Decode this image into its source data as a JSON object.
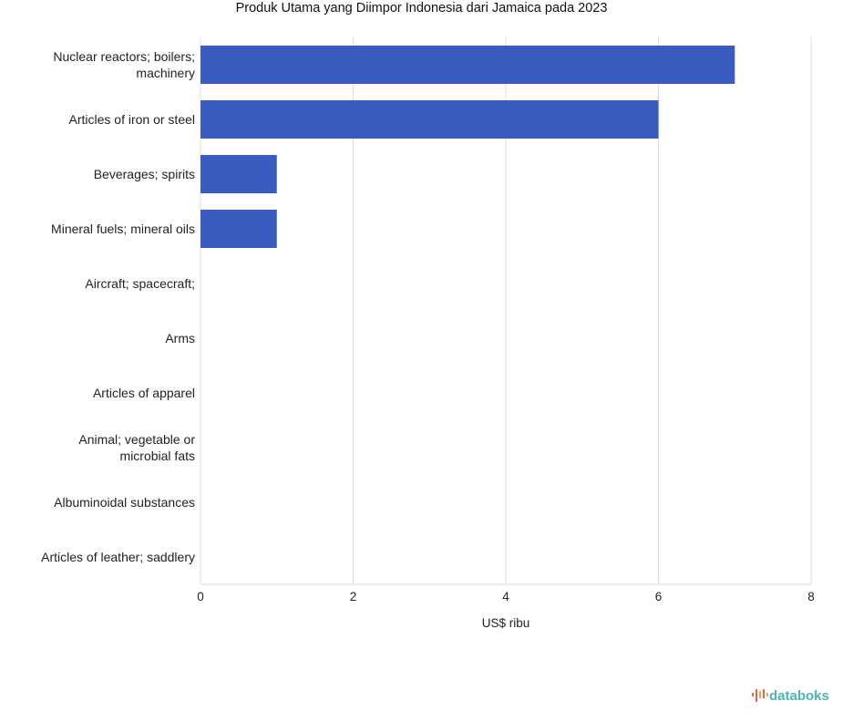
{
  "chart_data": {
    "type": "bar",
    "orientation": "horizontal",
    "title": "Produk Utama yang Diimpor Indonesia dari Jamaica pada 2023",
    "categories": [
      [
        "Nuclear reactors; boilers;",
        "machinery"
      ],
      [
        "Articles of iron or steel"
      ],
      [
        "Beverages; spirits"
      ],
      [
        "Mineral fuels; mineral oils"
      ],
      [
        "Aircraft; spacecraft;"
      ],
      [
        "Arms"
      ],
      [
        "Articles of apparel"
      ],
      [
        "Animal; vegetable or",
        "microbial fats"
      ],
      [
        "Albuminoidal substances"
      ],
      [
        "Articles of leather; saddlery"
      ]
    ],
    "values": [
      7,
      6,
      1,
      1,
      0,
      0,
      0,
      0,
      0,
      0
    ],
    "xlabel": "US$ ribu",
    "ylabel": "",
    "xlim": [
      0,
      8
    ],
    "xticks": [
      "0",
      "2",
      "4",
      "6",
      "8"
    ],
    "grid": true,
    "bar_color": "#3a5bbf"
  },
  "brand": {
    "logo_text": "databoks",
    "logo_color": "#4bb5b0"
  }
}
